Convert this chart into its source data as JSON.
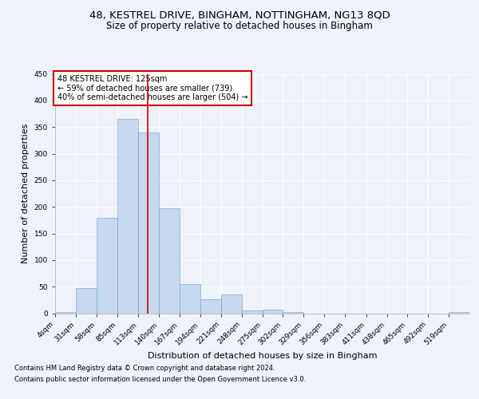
{
  "title1": "48, KESTREL DRIVE, BINGHAM, NOTTINGHAM, NG13 8QD",
  "title2": "Size of property relative to detached houses in Bingham",
  "xlabel": "Distribution of detached houses by size in Bingham",
  "ylabel": "Number of detached properties",
  "bin_edges": [
    4,
    31,
    58,
    85,
    113,
    140,
    167,
    194,
    221,
    248,
    275,
    302,
    329,
    356,
    383,
    411,
    438,
    465,
    492,
    519,
    546
  ],
  "bar_heights": [
    3,
    48,
    180,
    365,
    340,
    198,
    55,
    27,
    35,
    5,
    7,
    2,
    0,
    0,
    0,
    0,
    0,
    0,
    0,
    3
  ],
  "bar_color": "#b8d0ea",
  "bar_edge_color": "#6699cc",
  "bar_alpha": 0.75,
  "vline_x": 125,
  "vline_color": "#cc0000",
  "annotation_box_text": "48 KESTREL DRIVE: 125sqm\n← 59% of detached houses are smaller (739)\n40% of semi-detached houses are larger (504) →",
  "annotation_box_color": "#cc0000",
  "ylim": [
    0,
    450
  ],
  "yticks": [
    0,
    50,
    100,
    150,
    200,
    250,
    300,
    350,
    400,
    450
  ],
  "footer_line1": "Contains HM Land Registry data © Crown copyright and database right 2024.",
  "footer_line2": "Contains public sector information licensed under the Open Government Licence v3.0.",
  "background_color": "#eef2fb",
  "grid_color": "#ffffff",
  "title1_fontsize": 9.5,
  "title2_fontsize": 8.5,
  "ylabel_fontsize": 8,
  "xlabel_fontsize": 8,
  "tick_fontsize": 6.5,
  "annot_fontsize": 7,
  "footer_fontsize": 6
}
